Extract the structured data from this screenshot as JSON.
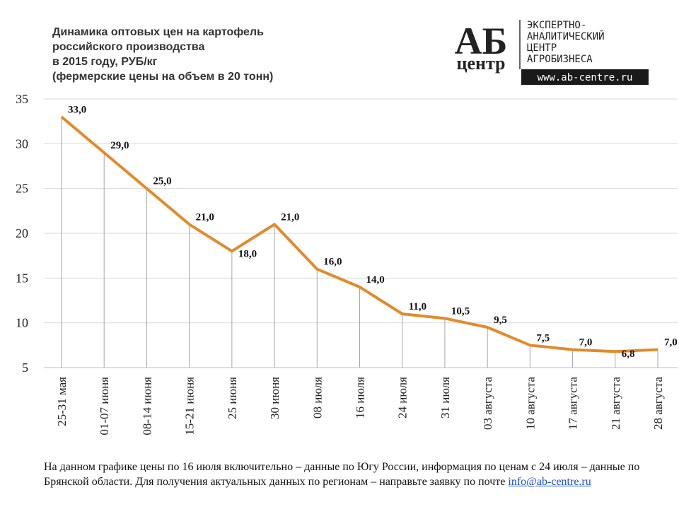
{
  "chart_data": {
    "type": "line",
    "title": [
      "Динамика оптовых цен на картофель",
      "российского производства",
      "в 2015 году, РУБ/кг",
      "(фермерские цены на объем в 20 тонн)"
    ],
    "categories": [
      "25-31 мая",
      "01-07 июня",
      "08-14 июня",
      "15-21 июня",
      "25 июня",
      "30 июня",
      "08 июля",
      "16 июля",
      "24 июля",
      "31 июля",
      "03 августа",
      "10 августа",
      "17 августа",
      "21 августа",
      "28 августа"
    ],
    "series": [
      {
        "color": "#e38a2b",
        "values": [
          33.0,
          29.0,
          25.0,
          21.0,
          18.0,
          21.0,
          16.0,
          14.0,
          11.0,
          10.5,
          9.5,
          7.5,
          7.0,
          6.8,
          7.0
        ],
        "value_labels": [
          "33,0",
          "29,0",
          "25,0",
          "21,0",
          "18,0",
          "21,0",
          "16,0",
          "14,0",
          "11,0",
          "10,5",
          "9,5",
          "7,5",
          "7,0",
          "6,8",
          "7,0"
        ]
      }
    ],
    "ylim": [
      5,
      35
    ],
    "yticks": [
      5,
      10,
      15,
      20,
      25,
      30,
      35
    ],
    "grid": true
  },
  "logo": {
    "mark": "АБ",
    "mark_sub": "центр",
    "lines": [
      "ЭКСПЕРТНО-",
      "АНАЛИТИЧЕСКИЙ",
      "ЦЕНТР",
      "АГРОБИЗНЕСА"
    ],
    "url": "www.ab-centre.ru"
  },
  "note": {
    "text": "На данном графике цены по 16 июля включительно – данные по Югу России, информация по ценам с 24 июля – данные по Брянской области. Для получения актуальных данных по регионам – направьте заявку по почте ",
    "link": "info@ab-centre.ru"
  }
}
